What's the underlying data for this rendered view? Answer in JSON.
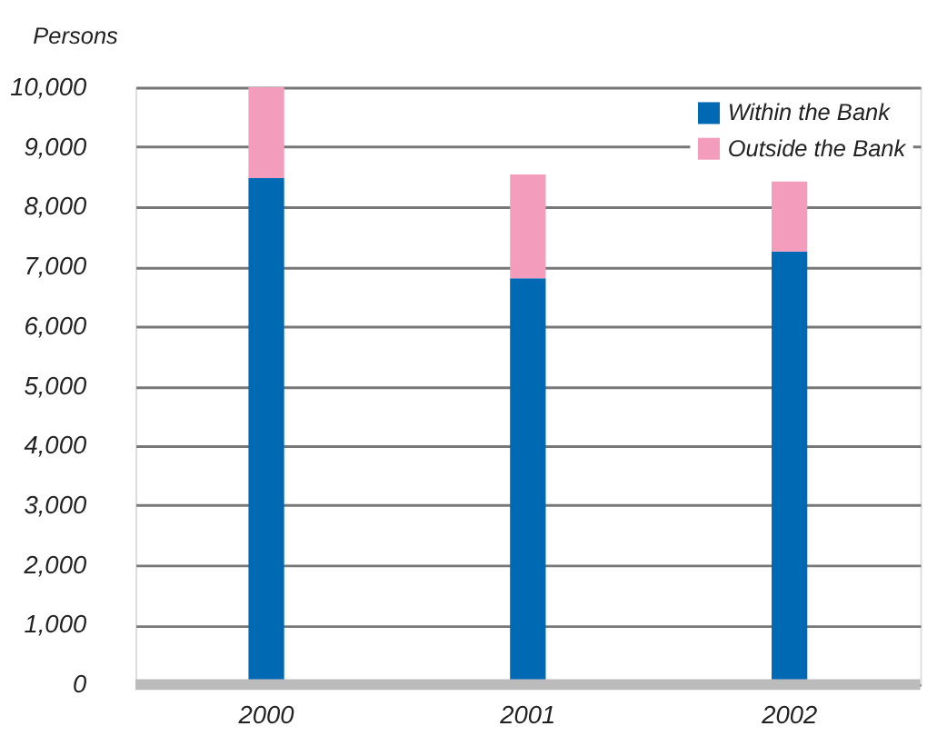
{
  "chart_data": {
    "type": "bar",
    "stacked": true,
    "ylabel": "Persons",
    "categories": [
      "2000",
      "2001",
      "2002"
    ],
    "series": [
      {
        "name": "Within the Bank",
        "color": "#0069b4",
        "values": [
          8480,
          6800,
          7250
        ]
      },
      {
        "name": "Outside the Bank",
        "color": "#f49cbb",
        "values": [
          1520,
          1740,
          1170
        ]
      }
    ],
    "ylim": [
      0,
      10000
    ],
    "yticks": [
      {
        "value": 0,
        "label": "0"
      },
      {
        "value": 1000,
        "label": "1,000"
      },
      {
        "value": 2000,
        "label": "2,000"
      },
      {
        "value": 3000,
        "label": "3,000"
      },
      {
        "value": 4000,
        "label": "4,000"
      },
      {
        "value": 5000,
        "label": "5,000"
      },
      {
        "value": 6000,
        "label": "6,000"
      },
      {
        "value": 7000,
        "label": "7,000"
      },
      {
        "value": 8000,
        "label": "8,000"
      },
      {
        "value": 9000,
        "label": "9,000"
      },
      {
        "value": 10000,
        "label": "10,000"
      }
    ],
    "grid": true,
    "legend": "top right"
  }
}
